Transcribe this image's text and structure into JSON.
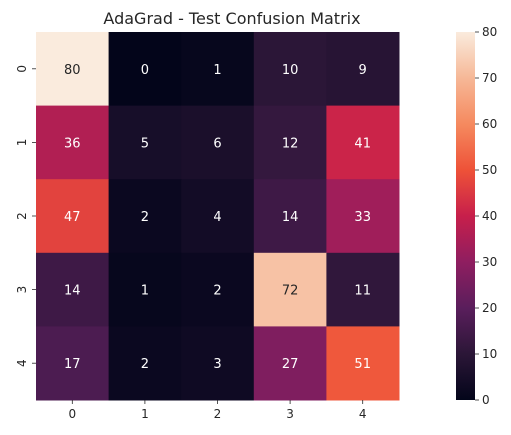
{
  "chart_data": {
    "type": "heatmap",
    "title": "AdaGrad - Test Confusion Matrix",
    "xlabel": "",
    "ylabel": "",
    "x_categories": [
      "0",
      "1",
      "2",
      "3",
      "4"
    ],
    "y_categories": [
      "0",
      "1",
      "2",
      "3",
      "4"
    ],
    "values": [
      [
        80,
        0,
        1,
        10,
        9
      ],
      [
        36,
        5,
        6,
        12,
        41
      ],
      [
        47,
        2,
        4,
        14,
        33
      ],
      [
        14,
        1,
        2,
        72,
        11
      ],
      [
        17,
        2,
        3,
        27,
        51
      ]
    ],
    "colorbar": {
      "range": [
        0,
        80
      ],
      "ticks": [
        "0",
        "10",
        "20",
        "30",
        "40",
        "50",
        "60",
        "70",
        "80"
      ],
      "colormap": "rocket"
    }
  }
}
